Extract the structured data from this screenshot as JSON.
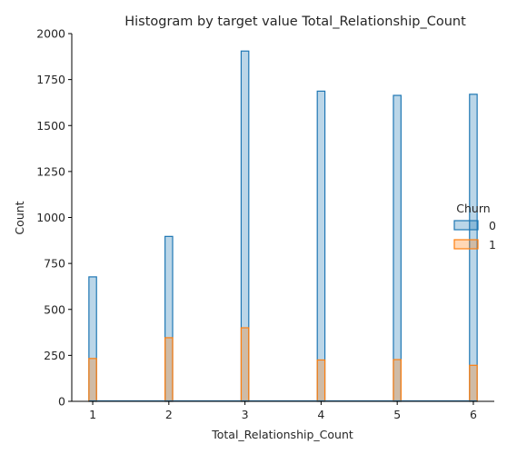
{
  "chart_data": {
    "type": "bar",
    "subtype": "histogram-step-overlay",
    "title": "Histogram by target value Total_Relationship_Count",
    "xlabel": "Total_Relationship_Count",
    "ylabel": "Count",
    "xlim": [
      0.725,
      6.275
    ],
    "ylim": [
      0,
      2000
    ],
    "x_ticks": [
      1,
      2,
      3,
      4,
      5,
      6
    ],
    "y_ticks": [
      0,
      250,
      500,
      750,
      1000,
      1250,
      1500,
      1750,
      2000
    ],
    "bin_width": 0.1,
    "legend": {
      "title": "Churn",
      "placement": "right",
      "entries": [
        "0",
        "1"
      ]
    },
    "series": [
      {
        "name": "0",
        "color": "#1f77b4",
        "fill": "#a9c9e5",
        "x": [
          1,
          2,
          3,
          4,
          5,
          6
        ],
        "values": [
          677,
          897,
          1905,
          1687,
          1664,
          1670
        ]
      },
      {
        "name": "1",
        "color": "#ff7f0e",
        "fill": "#f7c99f",
        "x": [
          1,
          2,
          3,
          4,
          5,
          6
        ],
        "values": [
          233,
          346,
          400,
          225,
          227,
          196
        ]
      }
    ],
    "grid": false,
    "spines": [
      "left",
      "bottom"
    ]
  }
}
